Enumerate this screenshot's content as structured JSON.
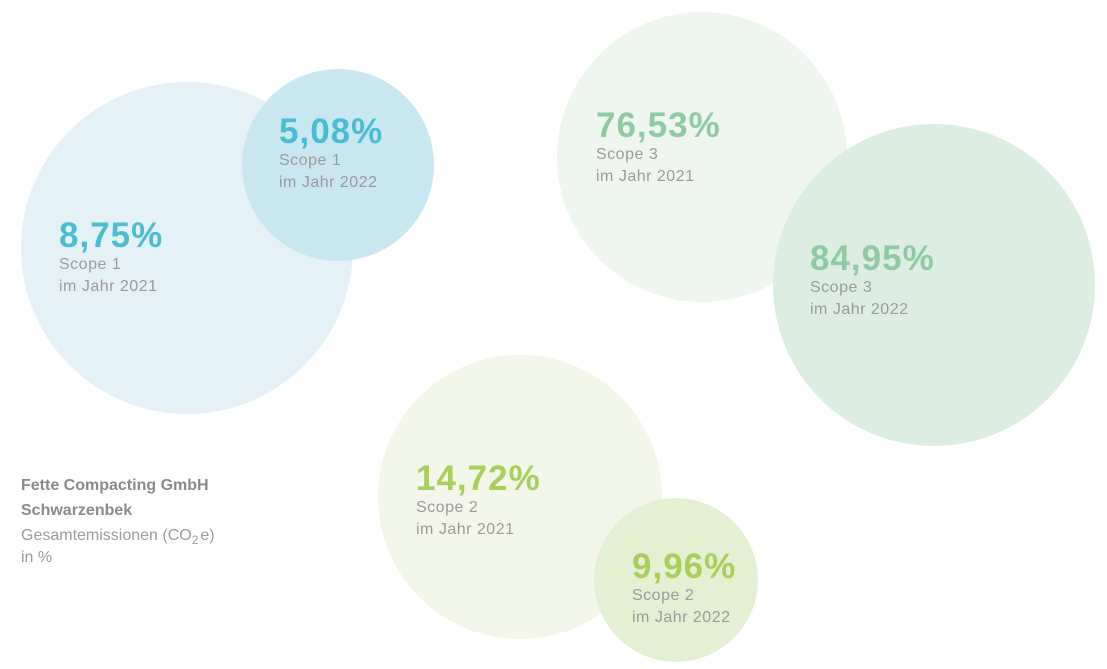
{
  "bubbles": [
    {
      "value": "8,75%",
      "scope": "Scope 1",
      "year": "im Jahr 2021"
    },
    {
      "value": "5,08%",
      "scope": "Scope 1",
      "year": "im Jahr 2022"
    },
    {
      "value": "76,53%",
      "scope": "Scope 3",
      "year": "im Jahr 2021"
    },
    {
      "value": "84,95%",
      "scope": "Scope 3",
      "year": "im Jahr 2022"
    },
    {
      "value": "14,72%",
      "scope": "Scope 2",
      "year": "im Jahr 2021"
    },
    {
      "value": "9,96%",
      "scope": "Scope 2",
      "year": "im Jahr 2022"
    }
  ],
  "caption": {
    "company": "Fette Compacting GmbH",
    "location": "Schwarzenbek",
    "metric": "Gesamtemissionen (CO",
    "subscript": "2",
    "metric_end": "e)",
    "unit": "in %"
  }
}
